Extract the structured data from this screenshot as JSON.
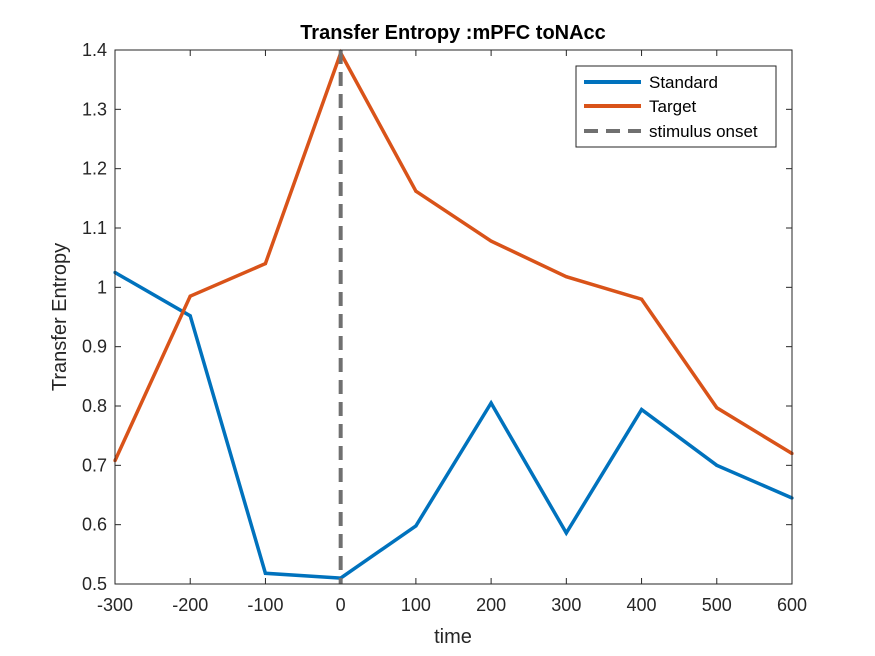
{
  "chart_data": {
    "type": "line",
    "title": "Transfer Entropy :mPFC toNAcc",
    "xlabel": "time",
    "ylabel": "Transfer Entropy",
    "xlim": [
      -300,
      600
    ],
    "ylim": [
      0.5,
      1.4
    ],
    "x": [
      -300,
      -200,
      -100,
      0,
      100,
      200,
      300,
      400,
      500,
      600
    ],
    "xticks": [
      -300,
      -200,
      -100,
      0,
      100,
      200,
      300,
      400,
      500,
      600
    ],
    "yticks": [
      0.5,
      0.6,
      0.7,
      0.8,
      0.9,
      1,
      1.1,
      1.2,
      1.3,
      1.4
    ],
    "series": [
      {
        "name": "Standard",
        "color": "#0072BD",
        "values": [
          1.025,
          0.952,
          0.518,
          0.51,
          0.598,
          0.805,
          0.586,
          0.794,
          0.7,
          0.645
        ]
      },
      {
        "name": "Target",
        "color": "#D95319",
        "values": [
          0.708,
          0.985,
          1.04,
          1.395,
          1.162,
          1.078,
          1.018,
          0.98,
          0.797,
          0.72
        ]
      }
    ],
    "vline": {
      "name": "stimulus onset",
      "x": 0,
      "color": "#707070",
      "style": "dashed"
    },
    "legend_position": "top-right",
    "grid": false
  }
}
